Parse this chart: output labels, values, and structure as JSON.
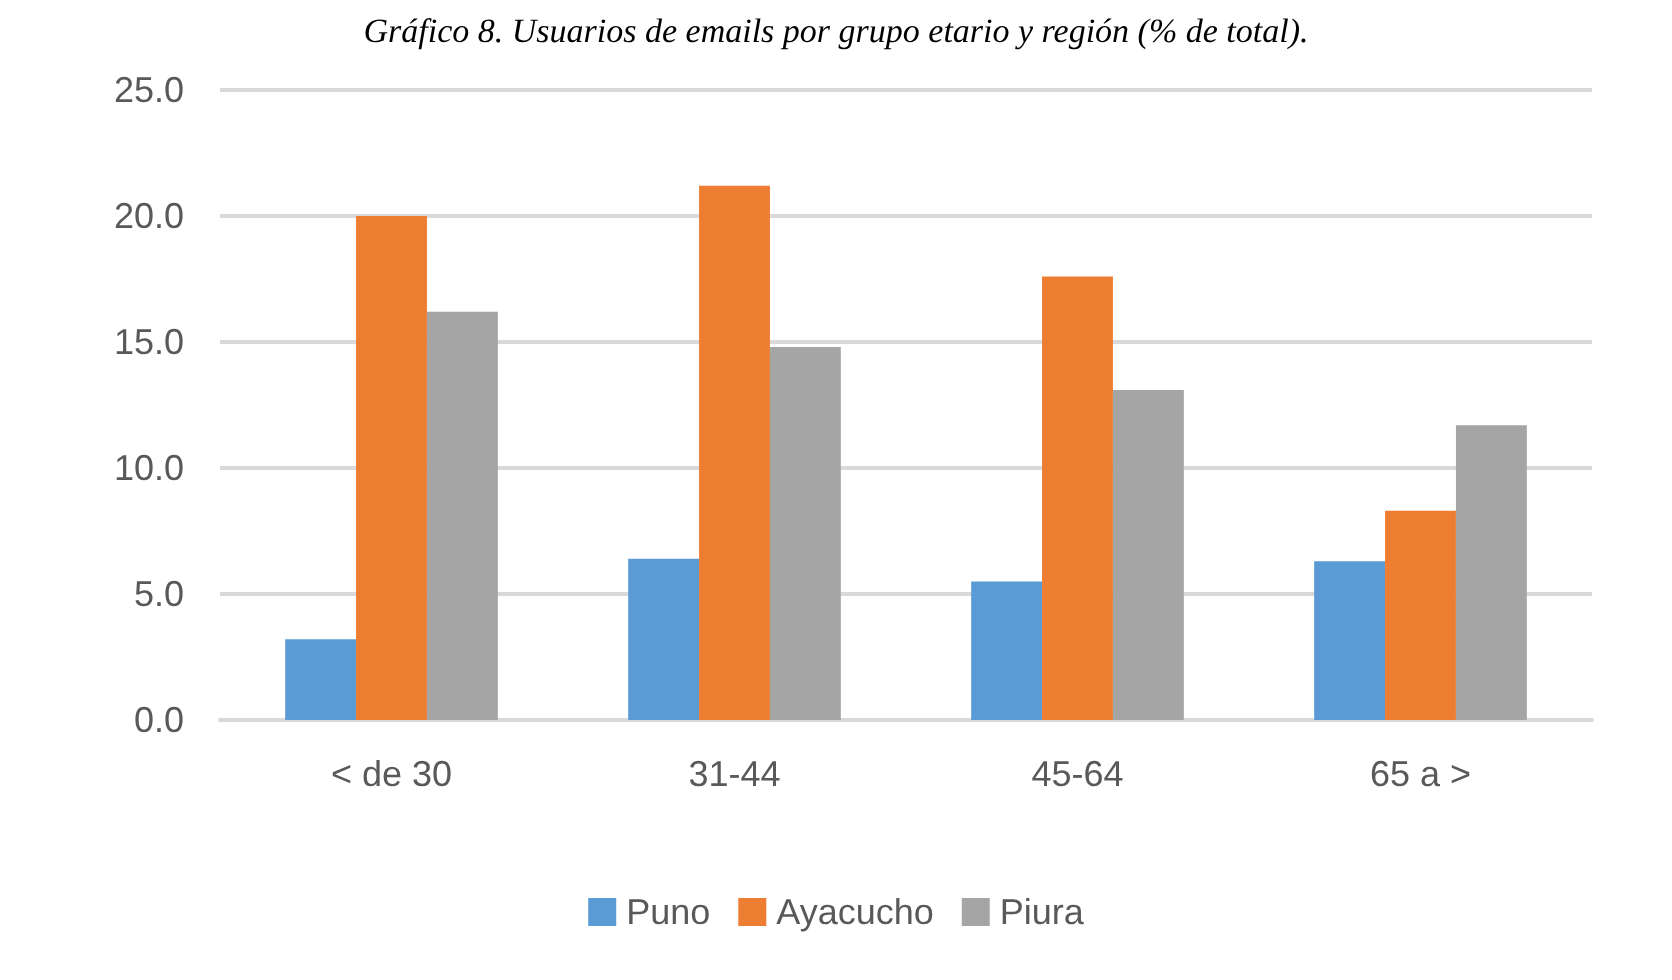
{
  "chart_data": {
    "type": "bar",
    "title": "Gráfico 8. Usuarios de emails por grupo etario y región (% de total).",
    "categories": [
      "< de 30",
      "31-44",
      "45-64",
      "65 a >"
    ],
    "series": [
      {
        "name": "Puno",
        "color": "#5b9bd5",
        "values": [
          3.2,
          6.4,
          5.5,
          6.3
        ]
      },
      {
        "name": "Ayacucho",
        "color": "#ed7d31",
        "values": [
          20.0,
          21.2,
          17.6,
          8.3
        ]
      },
      {
        "name": "Piura",
        "color": "#a5a5a5",
        "values": [
          16.2,
          14.8,
          13.1,
          11.7
        ]
      }
    ],
    "ylim": [
      0,
      25
    ],
    "yticks": [
      {
        "value": 0,
        "label": "0.0"
      },
      {
        "value": 5,
        "label": "5.0"
      },
      {
        "value": 10,
        "label": "10.0"
      },
      {
        "value": 15,
        "label": "15.0"
      },
      {
        "value": 20,
        "label": "20.0"
      },
      {
        "value": 25,
        "label": "25.0"
      }
    ],
    "grid": "y",
    "legend": "bottom"
  }
}
